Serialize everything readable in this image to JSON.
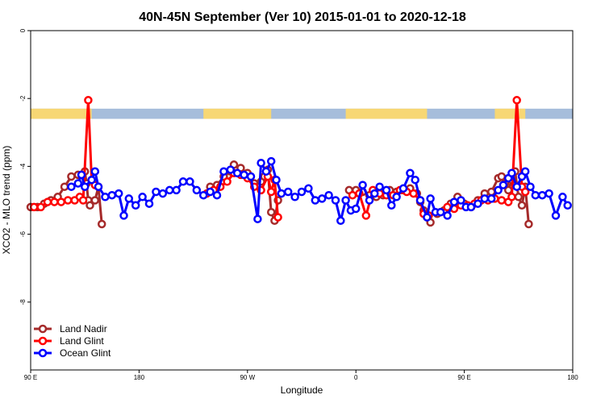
{
  "chart_data": {
    "type": "line",
    "title": "40N-45N September (Ver 10)   2015-01-01 to 2020-12-18",
    "xlabel": "Longitude",
    "ylabel": "XCO2 - MLO trend (ppm)",
    "xlim": [
      0,
      16
    ],
    "ylim": [
      -10,
      0
    ],
    "x_ticks": [
      {
        "value": 0,
        "label": "90 E"
      },
      {
        "value": 3.2,
        "label": "180"
      },
      {
        "value": 6.4,
        "label": "90 W"
      },
      {
        "value": 9.6,
        "label": "0"
      },
      {
        "value": 12.8,
        "label": "90 E"
      },
      {
        "value": 16,
        "label": "180"
      }
    ],
    "y_ticks": [
      {
        "value": 0,
        "label": "0"
      },
      {
        "value": -2,
        "label": "-2"
      },
      {
        "value": -4,
        "label": "-4"
      },
      {
        "value": -6,
        "label": "-6"
      },
      {
        "value": -8,
        "label": "-8"
      }
    ],
    "legend_position": "bottom-left",
    "land_band": {
      "y_range": [
        -2.6,
        -2.3
      ],
      "ocean_color": "#a6bddb",
      "land_color": "#f7d774",
      "land_segments": [
        [
          0,
          1.8
        ],
        [
          5.1,
          7.1
        ],
        [
          9.3,
          11.7
        ],
        [
          13.7,
          14.6
        ]
      ]
    },
    "series": [
      {
        "name": "Land Nadir",
        "color": "#a52a2a",
        "segments": [
          [
            [
              0,
              -5.2
            ],
            [
              0.2,
              -5.2
            ],
            [
              0.4,
              -5.1
            ],
            [
              0.6,
              -5.0
            ],
            [
              0.8,
              -4.9
            ],
            [
              1.0,
              -4.6
            ],
            [
              1.2,
              -4.3
            ],
            [
              1.4,
              -4.25
            ],
            [
              1.6,
              -4.15
            ],
            [
              1.65,
              -4.5
            ],
            [
              1.7,
              -5.0
            ],
            [
              1.75,
              -5.15
            ],
            [
              1.9,
              -5.0
            ],
            [
              2.0,
              -4.6
            ],
            [
              2.1,
              -5.7
            ]
          ],
          [
            [
              5.3,
              -4.6
            ],
            [
              5.5,
              -4.55
            ],
            [
              5.7,
              -4.3
            ],
            [
              5.9,
              -4.15
            ],
            [
              6.0,
              -3.95
            ],
            [
              6.2,
              -4.05
            ],
            [
              6.4,
              -4.2
            ],
            [
              6.6,
              -4.5
            ],
            [
              6.8,
              -4.45
            ],
            [
              6.9,
              -4.3
            ],
            [
              7.0,
              -4.1
            ],
            [
              7.1,
              -5.35
            ],
            [
              7.2,
              -5.6
            ],
            [
              7.3,
              -5.0
            ]
          ],
          [
            [
              9.4,
              -4.7
            ],
            [
              9.6,
              -4.7
            ],
            [
              9.8,
              -4.75
            ],
            [
              10.0,
              -4.85
            ],
            [
              10.2,
              -4.9
            ],
            [
              10.4,
              -4.85
            ],
            [
              10.6,
              -4.7
            ],
            [
              10.8,
              -4.75
            ],
            [
              11.0,
              -4.7
            ],
            [
              11.2,
              -4.65
            ],
            [
              11.4,
              -4.8
            ],
            [
              11.5,
              -5.05
            ],
            [
              11.6,
              -5.3
            ],
            [
              11.7,
              -5.5
            ],
            [
              11.8,
              -5.65
            ]
          ],
          [
            [
              12.0,
              -5.4
            ],
            [
              12.2,
              -5.3
            ],
            [
              12.4,
              -5.1
            ],
            [
              12.6,
              -4.9
            ],
            [
              12.8,
              -5.1
            ],
            [
              13.0,
              -5.2
            ],
            [
              13.2,
              -5.0
            ],
            [
              13.4,
              -4.8
            ],
            [
              13.6,
              -4.75
            ],
            [
              13.8,
              -4.35
            ],
            [
              13.9,
              -4.3
            ],
            [
              14.0,
              -4.5
            ],
            [
              14.1,
              -4.7
            ],
            [
              14.2,
              -4.4
            ],
            [
              14.3,
              -4.15
            ],
            [
              14.4,
              -4.9
            ],
            [
              14.5,
              -5.15
            ],
            [
              14.6,
              -4.6
            ],
            [
              14.7,
              -5.7
            ]
          ]
        ]
      },
      {
        "name": "Land Glint",
        "color": "#ff0000",
        "segments": [
          [
            [
              0.1,
              -5.2
            ],
            [
              0.3,
              -5.2
            ],
            [
              0.5,
              -5.05
            ],
            [
              0.7,
              -5.05
            ],
            [
              0.9,
              -5.05
            ],
            [
              1.1,
              -5.0
            ],
            [
              1.3,
              -5.0
            ],
            [
              1.45,
              -4.9
            ],
            [
              1.55,
              -5.0
            ],
            [
              1.7,
              -2.05
            ],
            [
              1.8,
              -4.4
            ],
            [
              1.9,
              -4.55
            ]
          ],
          [
            [
              5.2,
              -4.8
            ],
            [
              5.4,
              -4.7
            ],
            [
              5.6,
              -4.6
            ],
            [
              5.8,
              -4.45
            ],
            [
              6.0,
              -4.2
            ],
            [
              6.2,
              -4.25
            ],
            [
              6.4,
              -4.35
            ],
            [
              6.6,
              -4.6
            ],
            [
              6.8,
              -4.7
            ],
            [
              7.0,
              -4.3
            ],
            [
              7.1,
              -4.75
            ],
            [
              7.2,
              -4.4
            ],
            [
              7.3,
              -5.5
            ]
          ],
          [
            [
              9.5,
              -4.85
            ],
            [
              9.7,
              -4.8
            ],
            [
              9.9,
              -5.45
            ],
            [
              10.1,
              -4.7
            ],
            [
              10.3,
              -4.8
            ],
            [
              10.5,
              -4.85
            ],
            [
              10.7,
              -4.85
            ],
            [
              10.9,
              -4.7
            ],
            [
              11.1,
              -4.75
            ],
            [
              11.3,
              -4.8
            ],
            [
              11.5,
              -5.0
            ],
            [
              11.6,
              -5.4
            ],
            [
              11.75,
              -5.45
            ]
          ],
          [
            [
              12.1,
              -5.35
            ],
            [
              12.3,
              -5.2
            ],
            [
              12.5,
              -5.25
            ],
            [
              12.7,
              -5.15
            ],
            [
              12.9,
              -5.15
            ],
            [
              13.1,
              -5.1
            ],
            [
              13.3,
              -5.0
            ],
            [
              13.5,
              -5.0
            ],
            [
              13.7,
              -4.95
            ],
            [
              13.9,
              -5.0
            ],
            [
              14.1,
              -5.05
            ],
            [
              14.2,
              -4.9
            ],
            [
              14.35,
              -2.05
            ],
            [
              14.5,
              -4.6
            ],
            [
              14.6,
              -4.75
            ]
          ]
        ]
      },
      {
        "name": "Ocean Glint",
        "color": "#0000ff",
        "segments": [
          [
            [
              1.2,
              -4.6
            ],
            [
              1.4,
              -4.5
            ],
            [
              1.5,
              -4.25
            ],
            [
              1.6,
              -4.6
            ],
            [
              1.8,
              -4.4
            ],
            [
              1.9,
              -4.15
            ],
            [
              2.0,
              -4.6
            ],
            [
              2.2,
              -4.9
            ],
            [
              2.4,
              -4.85
            ],
            [
              2.6,
              -4.8
            ],
            [
              2.75,
              -5.45
            ],
            [
              2.9,
              -4.95
            ],
            [
              3.1,
              -5.15
            ],
            [
              3.3,
              -4.9
            ],
            [
              3.5,
              -5.1
            ],
            [
              3.7,
              -4.75
            ],
            [
              3.9,
              -4.8
            ],
            [
              4.1,
              -4.7
            ],
            [
              4.3,
              -4.7
            ],
            [
              4.5,
              -4.45
            ],
            [
              4.7,
              -4.45
            ],
            [
              4.9,
              -4.7
            ],
            [
              5.1,
              -4.85
            ],
            [
              5.3,
              -4.75
            ],
            [
              5.5,
              -4.85
            ],
            [
              5.7,
              -4.15
            ],
            [
              5.9,
              -4.1
            ],
            [
              6.1,
              -4.2
            ],
            [
              6.3,
              -4.25
            ],
            [
              6.5,
              -4.3
            ],
            [
              6.7,
              -5.55
            ],
            [
              6.8,
              -3.9
            ],
            [
              6.95,
              -4.15
            ],
            [
              7.1,
              -3.85
            ],
            [
              7.25,
              -4.4
            ],
            [
              7.4,
              -4.8
            ],
            [
              7.6,
              -4.75
            ],
            [
              7.8,
              -4.9
            ],
            [
              8.0,
              -4.75
            ],
            [
              8.2,
              -4.65
            ],
            [
              8.4,
              -5.0
            ],
            [
              8.6,
              -4.95
            ],
            [
              8.8,
              -4.85
            ],
            [
              9.0,
              -5.0
            ],
            [
              9.15,
              -5.6
            ],
            [
              9.3,
              -5.0
            ],
            [
              9.45,
              -5.3
            ],
            [
              9.6,
              -5.25
            ],
            [
              9.8,
              -4.55
            ],
            [
              10.0,
              -5.0
            ],
            [
              10.15,
              -4.8
            ],
            [
              10.3,
              -4.6
            ],
            [
              10.5,
              -4.7
            ],
            [
              10.65,
              -5.15
            ],
            [
              10.8,
              -4.9
            ],
            [
              11.0,
              -4.65
            ],
            [
              11.2,
              -4.2
            ],
            [
              11.35,
              -4.4
            ],
            [
              11.5,
              -5.0
            ],
            [
              11.7,
              -5.5
            ],
            [
              11.8,
              -4.95
            ],
            [
              11.95,
              -5.35
            ],
            [
              12.1,
              -5.35
            ],
            [
              12.3,
              -5.45
            ],
            [
              12.5,
              -5.05
            ],
            [
              12.7,
              -5.0
            ],
            [
              12.85,
              -5.2
            ],
            [
              13.0,
              -5.2
            ],
            [
              13.2,
              -5.1
            ],
            [
              13.4,
              -4.95
            ],
            [
              13.6,
              -4.95
            ],
            [
              13.8,
              -4.7
            ],
            [
              13.95,
              -4.55
            ],
            [
              14.1,
              -4.35
            ],
            [
              14.2,
              -4.2
            ],
            [
              14.35,
              -4.6
            ],
            [
              14.5,
              -4.3
            ],
            [
              14.6,
              -4.15
            ],
            [
              14.75,
              -4.6
            ],
            [
              14.9,
              -4.85
            ],
            [
              15.1,
              -4.85
            ],
            [
              15.3,
              -4.8
            ],
            [
              15.5,
              -5.45
            ],
            [
              15.7,
              -4.9
            ],
            [
              15.85,
              -5.15
            ]
          ]
        ]
      }
    ]
  }
}
